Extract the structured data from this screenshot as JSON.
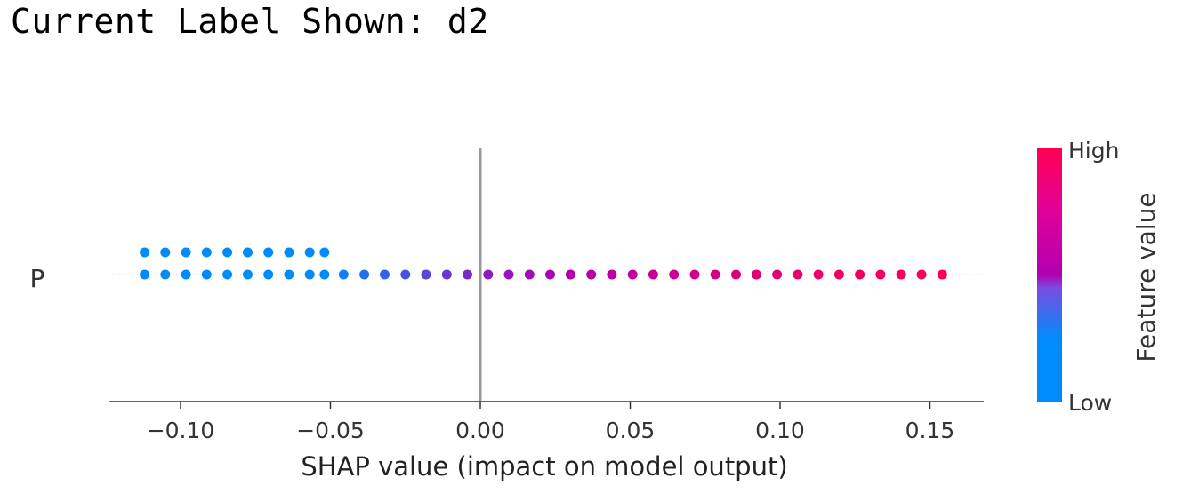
{
  "header": {
    "text": "Current Label Shown: d2"
  },
  "chart_data": {
    "type": "scatter",
    "subtype": "shap-summary-beeswarm",
    "features": [
      "P"
    ],
    "xlabel": "SHAP value (impact on model output)",
    "xlim": [
      -0.125,
      0.168
    ],
    "x_ticks": [
      -0.1,
      -0.05,
      0.0,
      0.05,
      0.1,
      0.15
    ],
    "x_tick_labels": [
      "−0.10",
      "−0.05",
      "0.00",
      "0.05",
      "0.10",
      "0.15"
    ],
    "zero_line": 0.0,
    "colorbar": {
      "title": "Feature value",
      "high_label": "High",
      "low_label": "Low",
      "low_color": "#008bfb",
      "mid_color": "#b000b0",
      "high_color": "#ff0052"
    },
    "points_upper_row": {
      "x": [
        -0.112,
        -0.1051,
        -0.0982,
        -0.0913,
        -0.0844,
        -0.0776,
        -0.0707,
        -0.0638,
        -0.0569,
        -0.052
      ],
      "feature_value": [
        0,
        0,
        0,
        0,
        0,
        0,
        0,
        0,
        0,
        0
      ]
    },
    "points_lower_row": {
      "x": [
        -0.112,
        -0.1051,
        -0.0982,
        -0.0913,
        -0.0844,
        -0.0776,
        -0.0707,
        -0.0638,
        -0.0569,
        -0.052,
        -0.0456,
        -0.0387,
        -0.0319,
        -0.025,
        -0.0181,
        -0.0112,
        -0.0043,
        0.0026,
        0.0095,
        0.0164,
        0.0233,
        0.0301,
        0.037,
        0.0439,
        0.0508,
        0.0577,
        0.0646,
        0.0715,
        0.0784,
        0.0853,
        0.0921,
        0.099,
        0.1059,
        0.1128,
        0.1197,
        0.1266,
        0.1335,
        0.1404,
        0.1472,
        0.1541
      ],
      "feature_value": [
        0,
        0,
        0,
        0,
        0,
        0,
        0,
        0,
        0,
        0,
        0.05,
        0.1,
        0.15,
        0.2,
        0.25,
        0.3,
        0.35,
        0.4,
        0.43,
        0.46,
        0.49,
        0.52,
        0.55,
        0.58,
        0.61,
        0.64,
        0.67,
        0.7,
        0.73,
        0.76,
        0.79,
        0.82,
        0.85,
        0.88,
        0.9,
        0.92,
        0.94,
        0.96,
        0.98,
        1.0
      ]
    }
  }
}
